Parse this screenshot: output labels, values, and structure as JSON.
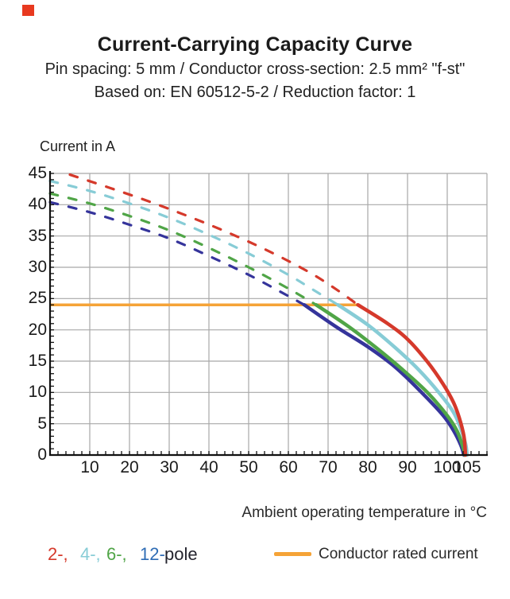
{
  "page": {
    "marker_color": "#e8391f",
    "background": "#ffffff"
  },
  "header": {
    "title": "Current-Carrying Capacity Curve",
    "subtitle1": "Pin spacing: 5 mm / Conductor cross-section: 2.5 mm² \"f-st\"",
    "subtitle2": "Based on: EN 60512-5-2 / Reduction factor: 1"
  },
  "chart_data": {
    "type": "line",
    "title": "Current-Carrying Capacity Curve",
    "ylabel": "Current in A",
    "xlabel": "Ambient operating temperature in °C",
    "xlim": [
      0,
      110
    ],
    "ylim": [
      0,
      45
    ],
    "x_tick_labels": [
      10,
      20,
      30,
      40,
      50,
      60,
      70,
      80,
      90,
      100,
      105
    ],
    "y_tick_labels": [
      0,
      5,
      10,
      15,
      20,
      25,
      30,
      35,
      40,
      45
    ],
    "x_minor_step": 2,
    "y_minor_step": 1,
    "grid": true,
    "grid_color": "#a8a8a8",
    "axis_color": "#111111",
    "rated_current": {
      "value": 24,
      "x_end": 77.6,
      "color": "#f5a337",
      "label": "Conductor rated current"
    },
    "series": [
      {
        "name": "12-pole",
        "color": "#35349b",
        "style": "dashed-then-solid",
        "dashed_points": [
          [
            0,
            40.4
          ],
          [
            10,
            38.8
          ],
          [
            20,
            36.8
          ],
          [
            30,
            34.6
          ],
          [
            40,
            31.8
          ],
          [
            50,
            28.8
          ],
          [
            60,
            25.4
          ],
          [
            64,
            24
          ]
        ],
        "solid_points": [
          [
            64,
            24
          ],
          [
            72,
            20.5
          ],
          [
            80,
            17.3
          ],
          [
            87,
            14.0
          ],
          [
            94,
            9.7
          ],
          [
            99,
            6.3
          ],
          [
            101.5,
            4.0
          ],
          [
            103.4,
            1.6
          ],
          [
            104.2,
            0
          ]
        ]
      },
      {
        "name": "6-pole",
        "color": "#50a547",
        "style": "dashed-then-solid",
        "dashed_points": [
          [
            0,
            41.8
          ],
          [
            10,
            40.2
          ],
          [
            20,
            38.2
          ],
          [
            30,
            35.9
          ],
          [
            40,
            33.1
          ],
          [
            50,
            30.0
          ],
          [
            60,
            26.6
          ],
          [
            67,
            24
          ]
        ],
        "solid_points": [
          [
            67,
            24
          ],
          [
            75,
            20.6
          ],
          [
            82,
            17.2
          ],
          [
            89,
            13.5
          ],
          [
            95,
            10.0
          ],
          [
            100,
            6.3
          ],
          [
            102.5,
            3.8
          ],
          [
            104.0,
            1.2
          ],
          [
            104.4,
            0
          ]
        ]
      },
      {
        "name": "4-pole",
        "color": "#87ccd6",
        "style": "dashed-then-solid",
        "dashed_points": [
          [
            0,
            43.8
          ],
          [
            10,
            42.2
          ],
          [
            20,
            40.2
          ],
          [
            30,
            37.9
          ],
          [
            40,
            35.2
          ],
          [
            50,
            32.2
          ],
          [
            60,
            28.8
          ],
          [
            66,
            26.5
          ],
          [
            72.5,
            24
          ]
        ],
        "solid_points": [
          [
            72.5,
            24
          ],
          [
            80,
            20.8
          ],
          [
            87,
            17.1
          ],
          [
            93,
            13.5
          ],
          [
            98,
            9.9
          ],
          [
            101.5,
            6.9
          ],
          [
            103.3,
            4.4
          ],
          [
            104.6,
            1.8
          ],
          [
            105,
            0
          ]
        ]
      },
      {
        "name": "2-pole",
        "color": "#d5392b",
        "style": "dashed-then-solid",
        "dashed_points": [
          [
            5,
            44.8
          ],
          [
            15,
            42.7
          ],
          [
            25,
            40.5
          ],
          [
            35,
            38.1
          ],
          [
            45,
            35.5
          ],
          [
            55,
            32.6
          ],
          [
            65,
            29.3
          ],
          [
            72,
            26.5
          ],
          [
            77.5,
            24
          ]
        ],
        "solid_points": [
          [
            77.5,
            24
          ],
          [
            85,
            21.0
          ],
          [
            90,
            18.5
          ],
          [
            95,
            14.9
          ],
          [
            99,
            11.3
          ],
          [
            101.5,
            8.5
          ],
          [
            103,
            6.0
          ],
          [
            104.2,
            3.0
          ],
          [
            104.6,
            0
          ]
        ]
      }
    ]
  },
  "legend": {
    "poles": [
      {
        "label": "2-,",
        "color": "#d5392b"
      },
      {
        "label": "4-,",
        "color": "#87ccd6"
      },
      {
        "label": "6-,",
        "color": "#50a547"
      },
      {
        "label": "12-",
        "color": "#2e6cb5"
      }
    ],
    "pole_suffix": "pole",
    "rated_label": "Conductor rated current"
  }
}
